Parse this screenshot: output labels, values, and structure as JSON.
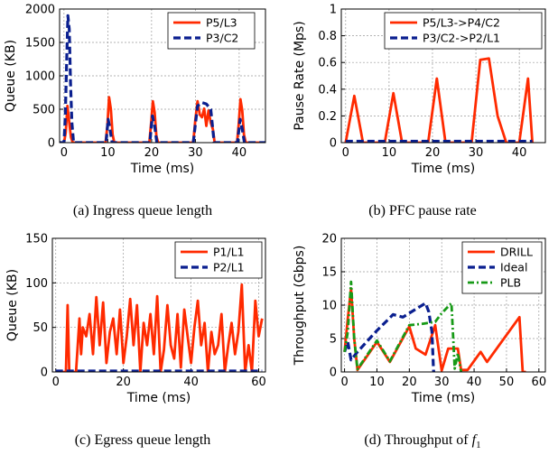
{
  "chart_data": [
    {
      "type": "line",
      "caption": "(a)  Ingress queue length",
      "xlabel": "Time (ms)",
      "ylabel": "Queue (KB)",
      "xlim": [
        -1,
        46
      ],
      "ylim": [
        0,
        2000
      ],
      "xticks": [
        0,
        10,
        20,
        30,
        40
      ],
      "yticks": [
        0,
        500,
        1000,
        1500,
        2000
      ],
      "grid": true,
      "legend_position": "top-right",
      "series": [
        {
          "name": "P5/L3",
          "color": "#ff2a00",
          "style": "solid",
          "x": [
            -1,
            0,
            0.4,
            0.8,
            1.2,
            1.6,
            2,
            9.5,
            9.9,
            10.3,
            10.7,
            11.1,
            11.5,
            19.5,
            19.9,
            20.3,
            20.7,
            21.1,
            21.5,
            29.5,
            30,
            30.5,
            31,
            31.5,
            32,
            32.5,
            33,
            33.5,
            34,
            34.4,
            39.5,
            39.9,
            40.3,
            40.7,
            41.1,
            41.5,
            46
          ],
          "y": [
            0,
            0,
            150,
            550,
            300,
            80,
            0,
            0,
            250,
            680,
            500,
            120,
            0,
            0,
            300,
            620,
            450,
            100,
            0,
            0,
            350,
            620,
            420,
            380,
            510,
            250,
            480,
            300,
            200,
            0,
            0,
            280,
            650,
            480,
            120,
            0,
            0
          ]
        },
        {
          "name": "P3/C2",
          "color": "#0a1f8f",
          "style": "dashed",
          "x": [
            -1,
            0,
            0.3,
            0.6,
            0.9,
            1.2,
            1.5,
            1.8,
            2.2,
            9.6,
            10.1,
            10.5,
            11,
            19.6,
            20.2,
            20.7,
            21.2,
            29.5,
            30.5,
            31.5,
            32.5,
            33.5,
            34.3,
            39.6,
            40.2,
            40.7,
            41.2,
            46
          ],
          "y": [
            0,
            0,
            400,
            1200,
            1900,
            1700,
            900,
            300,
            0,
            0,
            350,
            200,
            0,
            0,
            400,
            250,
            0,
            0,
            550,
            600,
            580,
            500,
            0,
            0,
            350,
            200,
            0,
            0
          ]
        }
      ]
    },
    {
      "type": "line",
      "caption": "(b)  PFC pause rate",
      "xlabel": "Time (ms)",
      "ylabel": "Pause Rate (Mps)",
      "xlim": [
        -1,
        46
      ],
      "ylim": [
        0,
        1.0
      ],
      "xticks": [
        0,
        10,
        20,
        30,
        40
      ],
      "yticks": [
        0,
        0.2,
        0.4,
        0.6,
        0.8,
        1.0
      ],
      "grid": true,
      "legend_position": "top-right",
      "series": [
        {
          "name": "P5/L3->P4/C2",
          "color": "#ff2a00",
          "style": "solid",
          "x": [
            0,
            2,
            4,
            9,
            11,
            13,
            19,
            21,
            23,
            29,
            31,
            33,
            35,
            37,
            40,
            42,
            43
          ],
          "y": [
            0,
            0.35,
            0,
            0,
            0.37,
            0,
            0,
            0.48,
            0,
            0,
            0.62,
            0.63,
            0.2,
            0,
            0,
            0.48,
            0
          ]
        },
        {
          "name": "P3/C2->P2/L1",
          "color": "#0a1f8f",
          "style": "dashed",
          "x": [
            0,
            43
          ],
          "y": [
            0.01,
            0.01
          ]
        }
      ]
    },
    {
      "type": "line",
      "caption": "(c)  Egress queue length",
      "xlabel": "Time (ms)",
      "ylabel": "Queue (KB)",
      "xlim": [
        -1,
        62
      ],
      "ylim": [
        0,
        150
      ],
      "xticks": [
        0,
        20,
        40,
        60
      ],
      "yticks": [
        0,
        50,
        100,
        150
      ],
      "grid": true,
      "legend_position": "top-right",
      "series": [
        {
          "name": "P1/L1",
          "color": "#ff2a00",
          "style": "solid",
          "x": [
            0,
            3,
            3.5,
            4,
            5,
            6,
            7,
            7.5,
            8,
            9,
            10,
            11,
            12,
            13,
            14,
            15,
            16,
            17,
            18,
            19,
            20,
            21,
            22,
            23,
            24,
            25,
            26,
            27,
            28,
            29,
            30,
            31,
            32,
            33,
            34,
            35,
            36,
            37,
            38,
            39,
            40,
            41,
            42,
            43,
            44,
            45,
            46,
            47,
            48,
            49,
            50,
            51,
            52,
            53,
            54,
            55,
            56,
            57,
            58,
            59,
            60,
            61
          ],
          "y": [
            0,
            0,
            75,
            0,
            0,
            0,
            60,
            20,
            50,
            40,
            65,
            20,
            84,
            30,
            78,
            10,
            45,
            60,
            20,
            70,
            10,
            40,
            82,
            30,
            75,
            0,
            55,
            30,
            65,
            20,
            85,
            0,
            25,
            75,
            30,
            15,
            65,
            5,
            70,
            40,
            10,
            50,
            80,
            30,
            55,
            0,
            45,
            20,
            30,
            65,
            0,
            30,
            55,
            20,
            45,
            98,
            0,
            30,
            0,
            80,
            40,
            60
          ]
        },
        {
          "name": "P2/L1",
          "color": "#0a1f8f",
          "style": "dashed",
          "x": [
            0,
            61
          ],
          "y": [
            1,
            1
          ]
        }
      ]
    },
    {
      "type": "line",
      "caption": "(d)  Throughput of ",
      "caption_math": "f",
      "caption_sub": "1",
      "xlabel": "Time (ms)",
      "ylabel": "Throughput (Gbps)",
      "xlim": [
        -1,
        62
      ],
      "ylim": [
        0,
        20
      ],
      "xticks": [
        0,
        10,
        20,
        30,
        40,
        50,
        60
      ],
      "yticks": [
        0,
        5,
        10,
        15,
        20
      ],
      "grid": true,
      "legend_position": "top-right",
      "series": [
        {
          "name": "DRILL",
          "color": "#ff2a00",
          "style": "solid",
          "x": [
            0,
            1,
            2,
            3,
            4,
            10,
            14,
            20,
            22,
            25,
            28,
            30,
            32,
            35,
            36,
            38,
            42,
            44,
            54,
            55,
            56
          ],
          "y": [
            3,
            8,
            12.5,
            5,
            0.3,
            4.5,
            1.5,
            6.8,
            3.5,
            2.6,
            7,
            0.2,
            3.5,
            3.5,
            0.3,
            0.3,
            3,
            1.5,
            8.2,
            0,
            0
          ]
        },
        {
          "name": "Ideal",
          "color": "#0a1f8f",
          "style": "dashed",
          "x": [
            0,
            1,
            2,
            4,
            10,
            15,
            18,
            20,
            25,
            26,
            27,
            27.5,
            28
          ],
          "y": [
            3,
            4.5,
            1.8,
            3,
            6.2,
            8.6,
            8.2,
            8.8,
            10.3,
            9,
            6,
            0,
            0
          ]
        },
        {
          "name": "PLB",
          "color": "#179a17",
          "style": "dashdot",
          "x": [
            0,
            1,
            2,
            3,
            4,
            10,
            14,
            20,
            24,
            28,
            30,
            33,
            34,
            35,
            36
          ],
          "y": [
            3,
            6,
            13.5,
            5,
            0.4,
            4.7,
            1.6,
            7,
            7.2,
            7.5,
            8.8,
            10.3,
            0.5,
            2.8,
            0
          ]
        }
      ]
    }
  ]
}
